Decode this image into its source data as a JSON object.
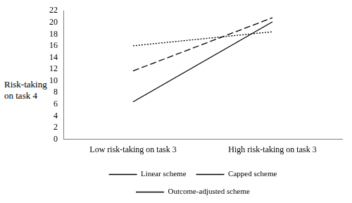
{
  "chart_data": {
    "type": "line",
    "ylabel": "Risk-taking on task 4",
    "categories": [
      "Low risk-taking on task 3",
      "High risk-taking on task 3"
    ],
    "series": [
      {
        "name": "Linear scheme",
        "color": "#000000",
        "line_style": "solid",
        "values": [
          6.4,
          20.1
        ]
      },
      {
        "name": "Capped scheme",
        "color": "#000000",
        "line_style": "dotted",
        "values": [
          16.0,
          18.4
        ]
      },
      {
        "name": "Outcome-adjusted scheme",
        "color": "#000000",
        "line_style": "dashed",
        "values": [
          11.7,
          20.8
        ]
      }
    ],
    "ylim": [
      0,
      22
    ],
    "yticks": [
      0,
      2,
      4,
      6,
      8,
      10,
      12,
      14,
      16,
      18,
      20,
      22
    ],
    "grid": false,
    "legend": "bottom"
  }
}
